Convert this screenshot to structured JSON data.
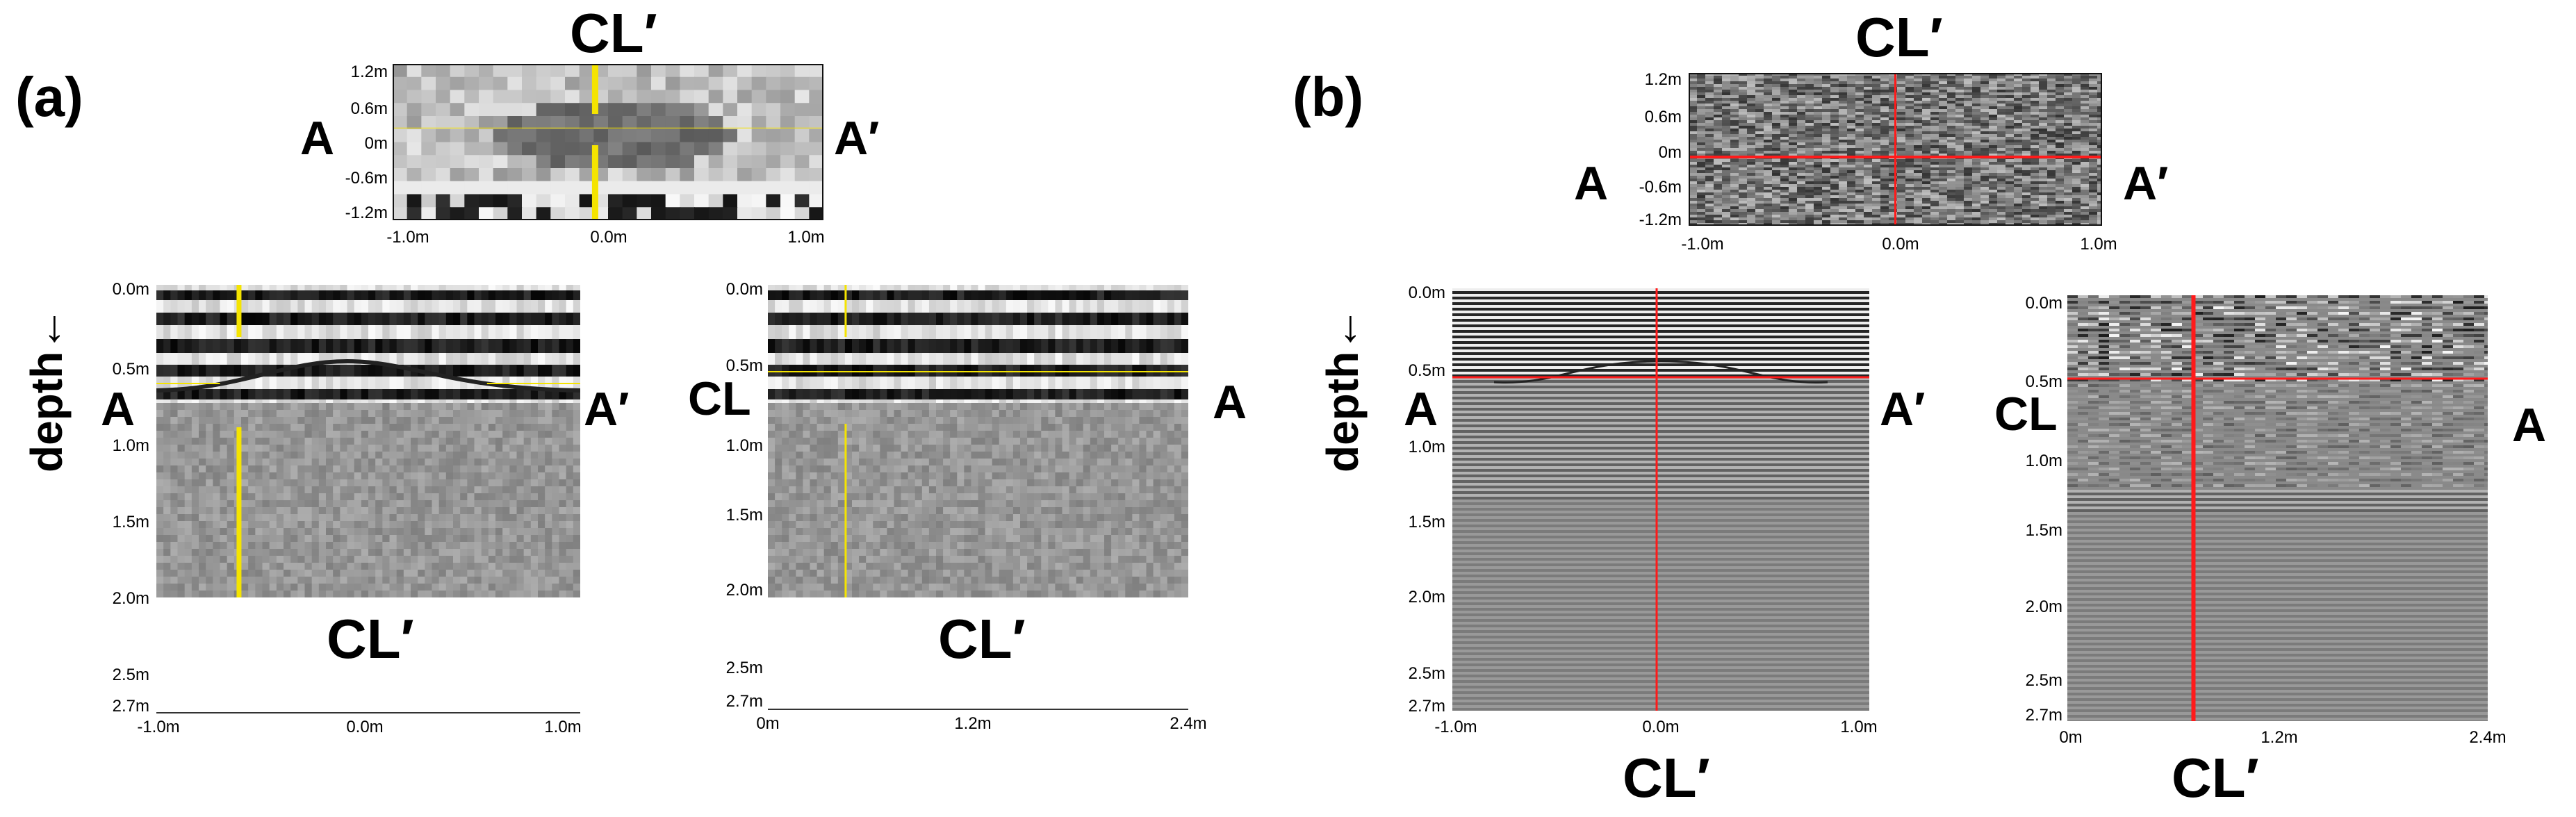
{
  "panel_a": {
    "tag": "(a)",
    "colors": {
      "marker": "#f5e400"
    },
    "top": {
      "title": "CL′",
      "left": "A",
      "right": "A′",
      "yticks": [
        "1.2m",
        "0.6m",
        "0m",
        "-0.6m",
        "-1.2m"
      ],
      "xticks": [
        "-1.0m",
        "0.0m",
        "1.0m"
      ]
    },
    "left": {
      "ylabel": "depth←",
      "left": "A",
      "right": "A′",
      "bottom": "CL′",
      "yticks": [
        "0.0m",
        "0.5m",
        "1.0m",
        "1.5m",
        "2.0m",
        "2.5m",
        "2.7m"
      ],
      "xticks": [
        "-1.0m",
        "0.0m",
        "1.0m"
      ]
    },
    "right": {
      "left": "CL",
      "right": "A",
      "bottom": "CL′",
      "yticks": [
        "0.0m",
        "0.5m",
        "1.0m",
        "1.5m",
        "2.0m",
        "2.5m",
        "2.7m"
      ],
      "xticks": [
        "0m",
        "1.2m",
        "2.4m"
      ]
    }
  },
  "panel_b": {
    "tag": "(b)",
    "colors": {
      "marker": "#ff1a1a"
    },
    "top": {
      "title": "CL′",
      "left": "A",
      "right": "A′",
      "yticks": [
        "1.2m",
        "0.6m",
        "0m",
        "-0.6m",
        "-1.2m"
      ],
      "xticks": [
        "-1.0m",
        "0.0m",
        "1.0m"
      ]
    },
    "left": {
      "ylabel": "depth←",
      "left": "A",
      "right": "A′",
      "bottom": "CL′",
      "yticks": [
        "0.0m",
        "0.5m",
        "1.0m",
        "1.5m",
        "2.0m",
        "2.5m",
        "2.7m"
      ],
      "xticks": [
        "-1.0m",
        "0.0m",
        "1.0m"
      ]
    },
    "right": {
      "left": "CL",
      "right": "A",
      "bottom": "CL′",
      "yticks": [
        "0.0m",
        "0.5m",
        "1.0m",
        "1.5m",
        "2.0m",
        "2.5m",
        "2.7m"
      ],
      "xticks": [
        "0m",
        "1.2m",
        "2.4m"
      ]
    }
  }
}
